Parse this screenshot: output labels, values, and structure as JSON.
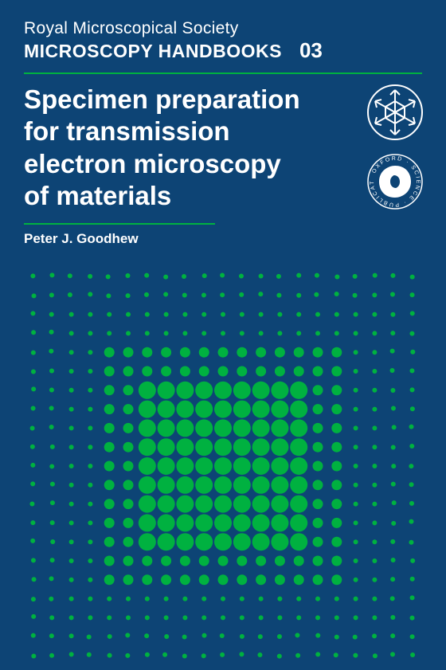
{
  "header": {
    "society": "Royal Microscopical Society",
    "series": "MICROSCOPY HANDBOOKS",
    "issue": "03"
  },
  "title": {
    "line1": "Specimen preparation",
    "line2": "for transmission",
    "line3": "electron microscopy",
    "line4": "of materials"
  },
  "author": "Peter J. Goodhew",
  "logos": {
    "snowflake": "snowflake-icon",
    "oxford": "oxford-science-publications-icon"
  },
  "colors": {
    "background": "#0d4475",
    "accent": "#00b140",
    "text": "#ffffff",
    "dot": "#00b140"
  },
  "dot_pattern": {
    "grid": 21,
    "spacing": 23.8,
    "base_radius": 3.0,
    "mid_radius": 6.5,
    "large_radius": 11.0,
    "color": "#00b140"
  }
}
